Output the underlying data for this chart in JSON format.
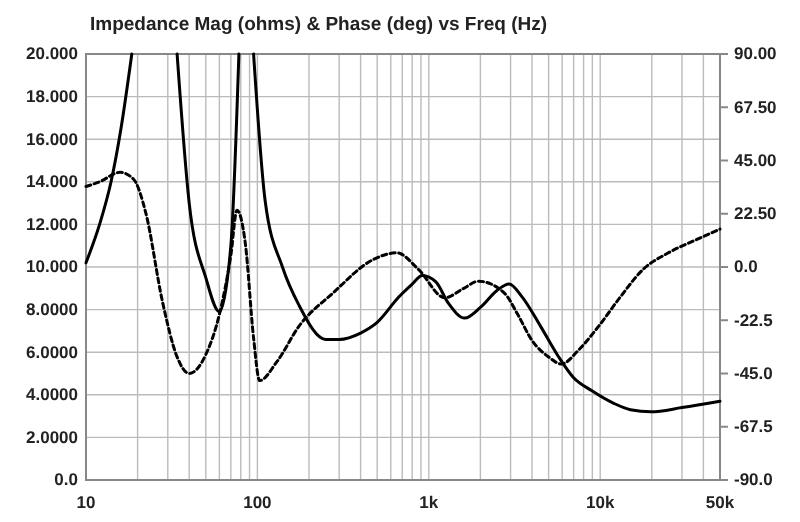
{
  "chart_data": {
    "type": "line",
    "title": "Impedance Mag (ohms) & Phase (deg) vs Freq (Hz)",
    "log": "x",
    "grid": true,
    "marker": "none",
    "xlim": [
      10,
      50000
    ],
    "xticks": [
      10,
      {
        "value": 20,
        "label": null
      },
      {
        "value": 30,
        "label": null
      },
      {
        "value": 40,
        "label": null
      },
      {
        "value": 50,
        "label": null
      },
      {
        "value": 60,
        "label": null
      },
      {
        "value": 70,
        "label": null
      },
      {
        "value": 80,
        "label": null
      },
      {
        "value": 90,
        "label": null
      },
      100,
      {
        "value": 200,
        "label": null
      },
      {
        "value": 300,
        "label": null
      },
      {
        "value": 400,
        "label": null
      },
      {
        "value": 500,
        "label": null
      },
      {
        "value": 600,
        "label": null
      },
      {
        "value": 700,
        "label": null
      },
      {
        "value": 800,
        "label": null
      },
      {
        "value": 900,
        "label": null
      },
      {
        "value": 1000,
        "label": "1k"
      },
      {
        "value": 2000,
        "label": null
      },
      {
        "value": 3000,
        "label": null
      },
      {
        "value": 4000,
        "label": null
      },
      {
        "value": 5000,
        "label": null
      },
      {
        "value": 6000,
        "label": null
      },
      {
        "value": 7000,
        "label": null
      },
      {
        "value": 8000,
        "label": null
      },
      {
        "value": 9000,
        "label": null
      },
      {
        "value": 10000,
        "label": "10k"
      },
      {
        "value": 20000,
        "label": null
      },
      {
        "value": 30000,
        "label": null
      },
      {
        "value": 40000,
        "label": null
      },
      {
        "value": 50000,
        "label": "50k"
      }
    ],
    "ylim": [
      0,
      20
    ],
    "yticks": [
      {
        "value": 0,
        "label": "0.0"
      },
      {
        "value": 2,
        "label": "2.0000"
      },
      {
        "value": 4,
        "label": "4.0000"
      },
      {
        "value": 6,
        "label": "6.0000"
      },
      {
        "value": 8,
        "label": "8.0000"
      },
      {
        "value": 10,
        "label": "10.000"
      },
      {
        "value": 12,
        "label": "12.000"
      },
      {
        "value": 14,
        "label": "14.000"
      },
      {
        "value": 16,
        "label": "16.000"
      },
      {
        "value": 18,
        "label": "18.000"
      },
      {
        "value": 20,
        "label": "20.000"
      }
    ],
    "y2lim": [
      -90,
      90
    ],
    "y2ticks": [
      {
        "value": -90,
        "label": "-90.0"
      },
      {
        "value": -67.5,
        "label": "-67.5"
      },
      {
        "value": -45,
        "label": "-45.0"
      },
      {
        "value": -22.5,
        "label": "-22.5"
      },
      {
        "value": 0,
        "label": "0.0"
      },
      {
        "value": 22.5,
        "label": "22.50"
      },
      {
        "value": 45,
        "label": "45.00"
      },
      {
        "value": 67.5,
        "label": "67.50"
      },
      {
        "value": 90,
        "label": "90.00"
      }
    ],
    "series": [
      {
        "color": "#000000",
        "line_style": "solid",
        "x": [
          10,
          12,
          14,
          16,
          18.5,
          25,
          34,
          40,
          50,
          60,
          70,
          78,
          88,
          95,
          111,
          140,
          175,
          250,
          300,
          400,
          500,
          670,
          800,
          915,
          1100,
          1300,
          1620,
          2000,
          2500,
          2940,
          3500,
          4500,
          5700,
          7000,
          8900,
          12000,
          15000,
          19800,
          30000,
          50000
        ],
        "values": [
          10.2,
          12.0,
          14.0,
          16.5,
          20,
          null,
          20,
          13.0,
          9.5,
          7.9,
          11.0,
          20,
          null,
          20,
          13.1,
          10.0,
          8.2,
          6.6,
          6.6,
          6.9,
          7.4,
          8.6,
          9.2,
          9.6,
          9.3,
          8.3,
          7.6,
          8.1,
          8.9,
          9.2,
          8.6,
          7.2,
          5.8,
          4.8,
          4.2,
          3.6,
          3.3,
          3.2,
          3.4,
          3.7
        ]
      },
      {
        "color": "#000000",
        "line_style": "dashed",
        "axis": "y2",
        "x": [
          10,
          12,
          15.8,
          19,
          22.3,
          28,
          34,
          40,
          50,
          60,
          70,
          76,
          85,
          95,
          103,
          130,
          175,
          276,
          470,
          650,
          870,
          1240,
          1600,
          1950,
          2760,
          3300,
          4000,
          5000,
          5940,
          7500,
          9800,
          13000,
          17800,
          25000,
          35000,
          50000
        ],
        "values": [
          34,
          36,
          40,
          37,
          23,
          -15,
          -38,
          -45,
          -37,
          -20,
          5,
          24,
          10,
          -30,
          -48,
          -40,
          -25,
          -11,
          3,
          6,
          -1,
          -13,
          -9,
          -6,
          -11,
          -20,
          -31,
          -38,
          -41,
          -35,
          -25,
          -13,
          -1,
          6,
          11,
          16
        ]
      }
    ]
  }
}
